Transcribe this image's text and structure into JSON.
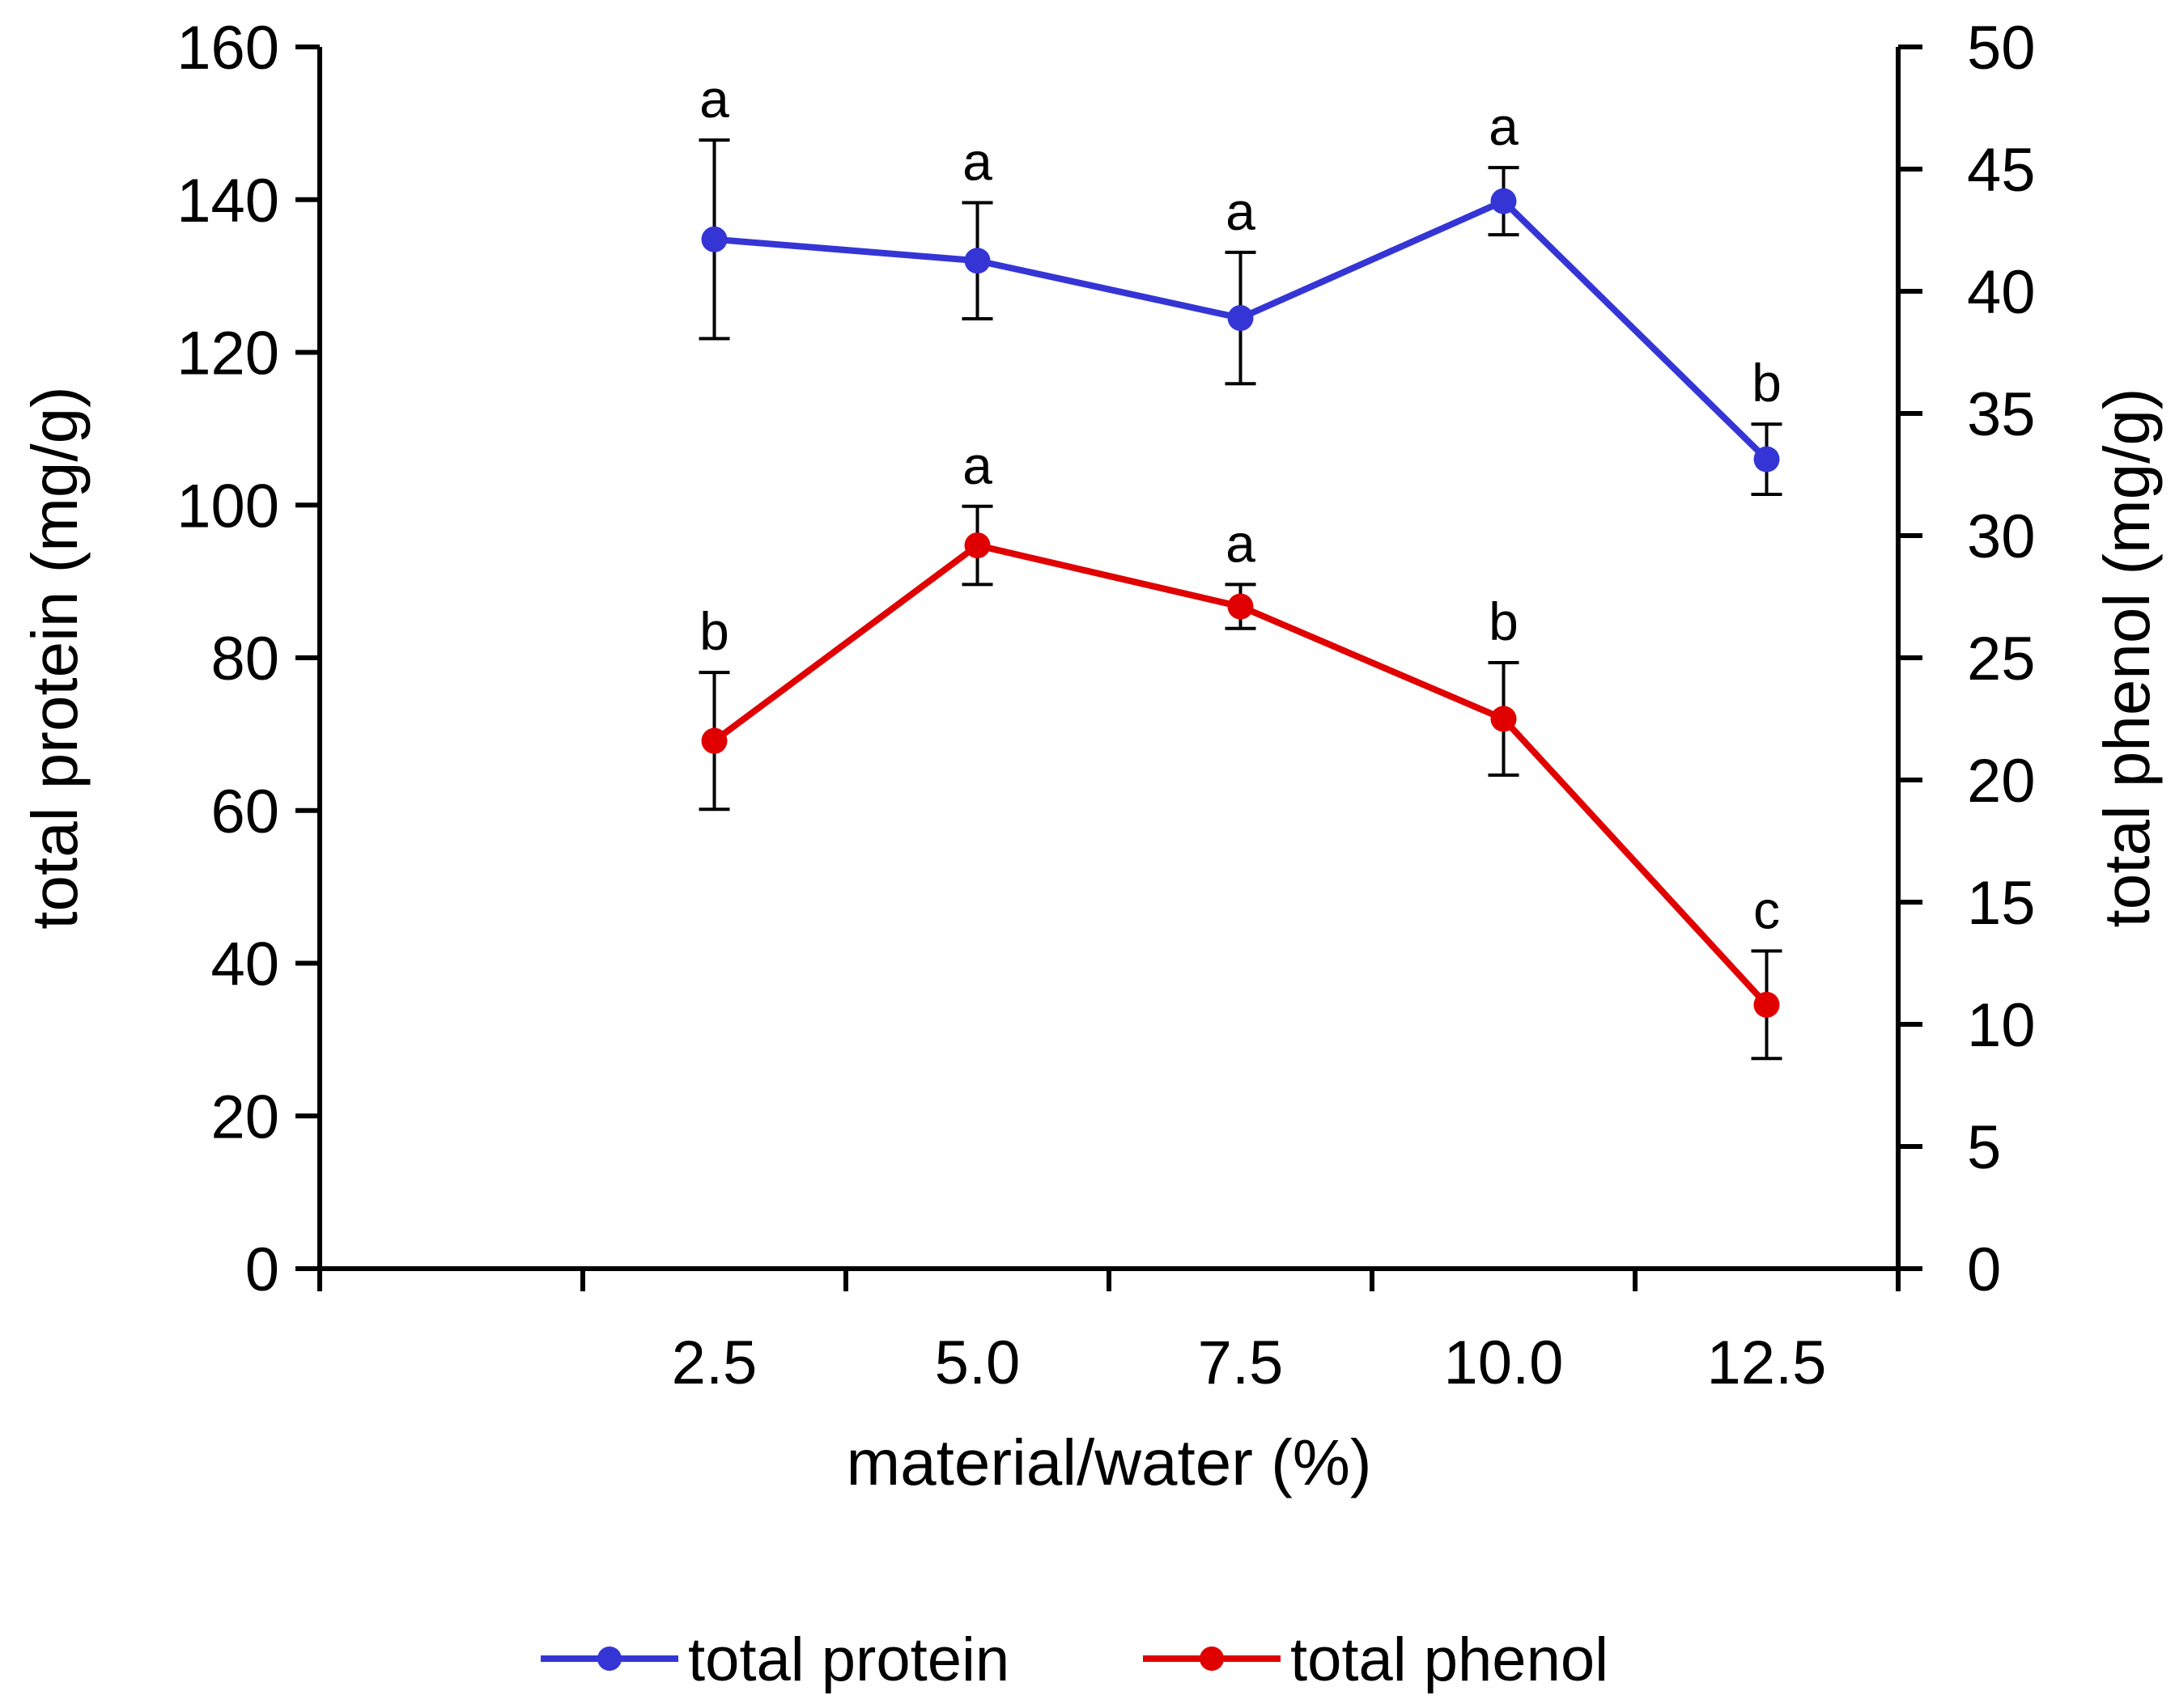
{
  "chart_data": {
    "type": "line",
    "x": [
      2.5,
      5.0,
      7.5,
      10.0,
      12.5
    ],
    "x_tick_labels": [
      "2.5",
      "5.0",
      "7.5",
      "10.0",
      "12.5"
    ],
    "xlabel": "material/water (%)",
    "ylabel_left": "total protein  (mg/g)",
    "ylabel_right": "total phenol  (mg/g)",
    "ylim_left": [
      0,
      160
    ],
    "ylim_right": [
      0,
      50
    ],
    "y_ticks_left": [
      "0",
      "20",
      "40",
      "60",
      "80",
      "100",
      "120",
      "140",
      "160"
    ],
    "y_ticks_right": [
      "0",
      "5",
      "10",
      "15",
      "20",
      "25",
      "30",
      "35",
      "40",
      "45",
      "50"
    ],
    "grid": false,
    "legend_position": "bottom",
    "series": [
      {
        "name": "total protein",
        "axis": "left",
        "color": "#3535d6",
        "values": [
          134.8,
          132.0,
          124.5,
          139.8,
          106.0
        ],
        "error": [
          13.0,
          7.6,
          8.6,
          4.4,
          4.6
        ],
        "significance": [
          "a",
          "a",
          "a",
          "a",
          "b"
        ]
      },
      {
        "name": "total phenol",
        "axis": "right",
        "color": "#e00000",
        "values": [
          21.6,
          29.6,
          27.1,
          22.5,
          10.8
        ],
        "error": [
          2.8,
          1.6,
          0.9,
          2.3,
          2.2
        ],
        "significance": [
          "b",
          "a",
          "a",
          "b",
          "c"
        ]
      }
    ]
  }
}
